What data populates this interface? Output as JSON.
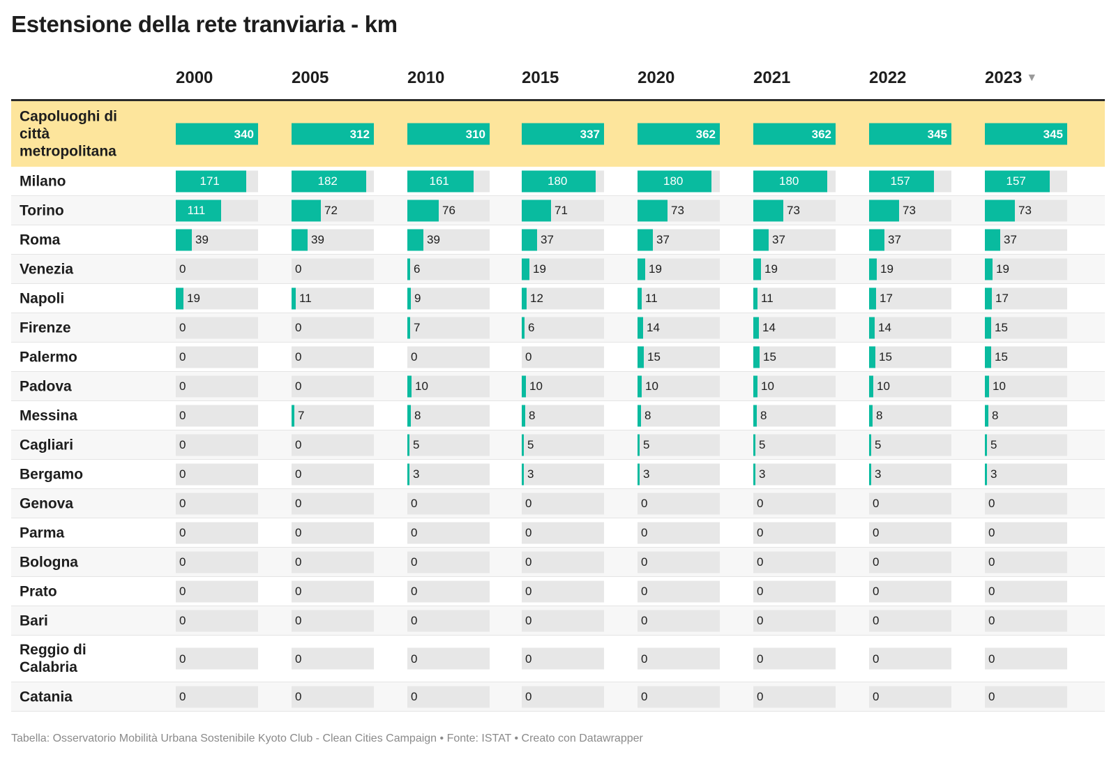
{
  "title": "Estensione della rete tranviaria - km",
  "sort_icon": "sort-descending-icon",
  "footer": "Tabella: Osservatorio Mobilità Urbana Sostenibile Kyoto Club - Clean Cities Campaign • Fonte: ISTAT • Creato con Datawrapper",
  "colors": {
    "bar": "#09bb9f",
    "track": "#e7e7e7",
    "highlight_row": "#fde59c"
  },
  "chart_data": {
    "type": "table",
    "title": "Estensione della rete tranviaria - km",
    "columns": [
      "2000",
      "2005",
      "2010",
      "2015",
      "2020",
      "2021",
      "2022",
      "2023"
    ],
    "sorted_column": "2023",
    "bar_max": 200,
    "rows": [
      {
        "label": "Capoluoghi di città metropolitana",
        "values": [
          340,
          312,
          310,
          337,
          362,
          362,
          345,
          345
        ],
        "highlight": true
      },
      {
        "label": "Milano",
        "values": [
          171,
          182,
          161,
          180,
          180,
          180,
          157,
          157
        ]
      },
      {
        "label": "Torino",
        "values": [
          111,
          72,
          76,
          71,
          73,
          73,
          73,
          73
        ]
      },
      {
        "label": "Roma",
        "values": [
          39,
          39,
          39,
          37,
          37,
          37,
          37,
          37
        ]
      },
      {
        "label": "Venezia",
        "values": [
          0,
          0,
          6,
          19,
          19,
          19,
          19,
          19
        ]
      },
      {
        "label": "Napoli",
        "values": [
          19,
          11,
          9,
          12,
          11,
          11,
          17,
          17
        ]
      },
      {
        "label": "Firenze",
        "values": [
          0,
          0,
          7,
          6,
          14,
          14,
          14,
          15
        ]
      },
      {
        "label": "Palermo",
        "values": [
          0,
          0,
          0,
          0,
          15,
          15,
          15,
          15
        ]
      },
      {
        "label": "Padova",
        "values": [
          0,
          0,
          10,
          10,
          10,
          10,
          10,
          10
        ]
      },
      {
        "label": "Messina",
        "values": [
          0,
          7,
          8,
          8,
          8,
          8,
          8,
          8
        ]
      },
      {
        "label": "Cagliari",
        "values": [
          0,
          0,
          5,
          5,
          5,
          5,
          5,
          5
        ]
      },
      {
        "label": "Bergamo",
        "values": [
          0,
          0,
          3,
          3,
          3,
          3,
          3,
          3
        ]
      },
      {
        "label": "Genova",
        "values": [
          0,
          0,
          0,
          0,
          0,
          0,
          0,
          0
        ]
      },
      {
        "label": "Parma",
        "values": [
          0,
          0,
          0,
          0,
          0,
          0,
          0,
          0
        ]
      },
      {
        "label": "Bologna",
        "values": [
          0,
          0,
          0,
          0,
          0,
          0,
          0,
          0
        ]
      },
      {
        "label": "Prato",
        "values": [
          0,
          0,
          0,
          0,
          0,
          0,
          0,
          0
        ]
      },
      {
        "label": "Bari",
        "values": [
          0,
          0,
          0,
          0,
          0,
          0,
          0,
          0
        ]
      },
      {
        "label": "Reggio di Calabria",
        "values": [
          0,
          0,
          0,
          0,
          0,
          0,
          0,
          0
        ]
      },
      {
        "label": "Catania",
        "values": [
          0,
          0,
          0,
          0,
          0,
          0,
          0,
          0
        ]
      }
    ]
  }
}
